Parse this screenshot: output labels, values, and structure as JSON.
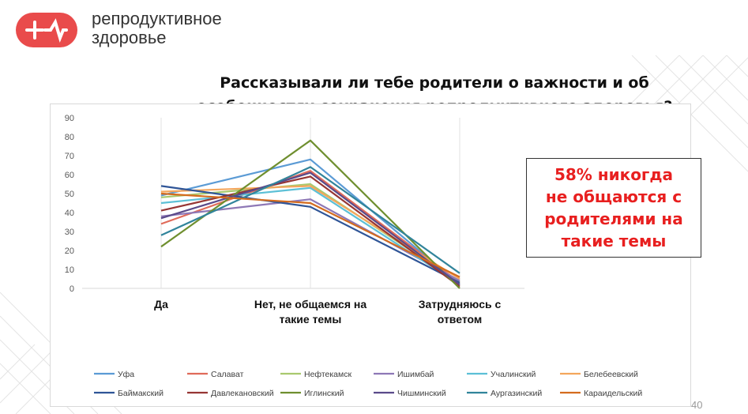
{
  "logo": {
    "name": "репродуктивное\nздоровье",
    "icon": "plus-arrow-logo-icon",
    "color": "#e94b4b"
  },
  "slide": {
    "title_line1": "Рассказывали ли тебе родители о важности и об",
    "title_line2": "особенностях сохранения репродуктивного здоровья?",
    "callout": "58% никогда\nне общаются с\nродителями на\nтакие темы",
    "callout_color": "#e81f1f",
    "page_number": "40"
  },
  "chart_data": {
    "type": "line",
    "title": "",
    "xlabel": "",
    "ylabel": "",
    "ylim": [
      0,
      90
    ],
    "yticks": [
      0,
      10,
      20,
      30,
      40,
      50,
      60,
      70,
      80,
      90
    ],
    "grid": false,
    "legend_position": "bottom",
    "categories": [
      "Да",
      "Нет, не общаемся на\nтакие темы",
      "Затрудняюсь с\nответом"
    ],
    "series": [
      {
        "name": "Уфа",
        "color": "#5b9bd5",
        "values": [
          49,
          68,
          2
        ]
      },
      {
        "name": "Салават",
        "color": "#e06b5a",
        "values": [
          34,
          62,
          3
        ]
      },
      {
        "name": "Нефтекамск",
        "color": "#a9c96e",
        "values": [
          48,
          55,
          3
        ]
      },
      {
        "name": "Ишимбай",
        "color": "#8e78b6",
        "values": [
          38,
          47,
          4
        ]
      },
      {
        "name": "Учалинский",
        "color": "#5cc0d6",
        "values": [
          45,
          53,
          2
        ]
      },
      {
        "name": "Белебеевский",
        "color": "#f4a65c",
        "values": [
          51,
          54,
          5
        ]
      },
      {
        "name": "Баймакский",
        "color": "#2f5597",
        "values": [
          54,
          43,
          3
        ]
      },
      {
        "name": "Давлекановский",
        "color": "#963634",
        "values": [
          41,
          59,
          1
        ]
      },
      {
        "name": "Иглинский",
        "color": "#6f8f2f",
        "values": [
          22,
          78,
          0
        ]
      },
      {
        "name": "Чишминский",
        "color": "#5a4a8a",
        "values": [
          37,
          61,
          2
        ]
      },
      {
        "name": "Аургазинский",
        "color": "#31849b",
        "values": [
          28,
          64,
          8
        ]
      },
      {
        "name": "Караидельский",
        "color": "#d46c1e",
        "values": [
          50,
          45,
          6
        ]
      }
    ]
  }
}
